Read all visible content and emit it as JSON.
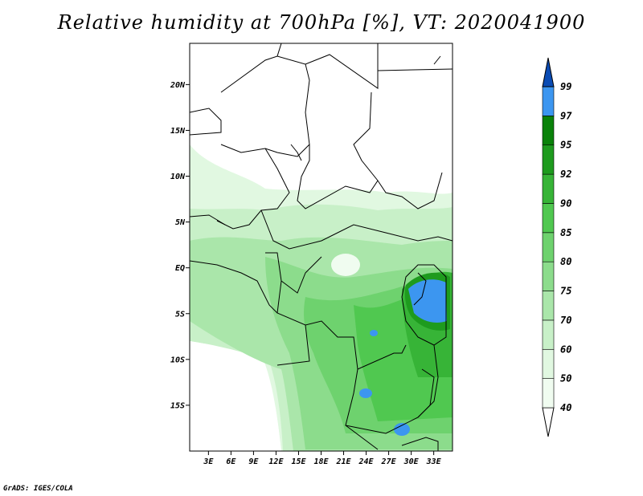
{
  "title": "Relative humidity at 700hPa [%], VT: 2020041900",
  "credit": "GrADS: IGES/COLA",
  "map": {
    "lat_labels": [
      "20N",
      "15N",
      "10N",
      "5N",
      "EQ",
      "5S",
      "10S",
      "15S"
    ],
    "lon_labels": [
      "3E",
      "6E",
      "9E",
      "12E",
      "15E",
      "18E",
      "21E",
      "24E",
      "27E",
      "30E",
      "33E"
    ],
    "lat_range": [
      -20,
      24.5
    ],
    "lon_range": [
      0.5,
      35.5
    ]
  },
  "colorbar": {
    "labels": [
      "40",
      "50",
      "60",
      "70",
      "75",
      "80",
      "85",
      "90",
      "92",
      "95",
      "97",
      "99"
    ],
    "colors": [
      "#ffffff",
      "#f0fcf0",
      "#e1f8e1",
      "#c8f0c8",
      "#aae6aa",
      "#8cdc8c",
      "#6ed26e",
      "#50c850",
      "#37b437",
      "#1e9b1e",
      "#0a820a",
      "#3c96f0",
      "#1e6ed2",
      "#0a4bb4"
    ]
  }
}
